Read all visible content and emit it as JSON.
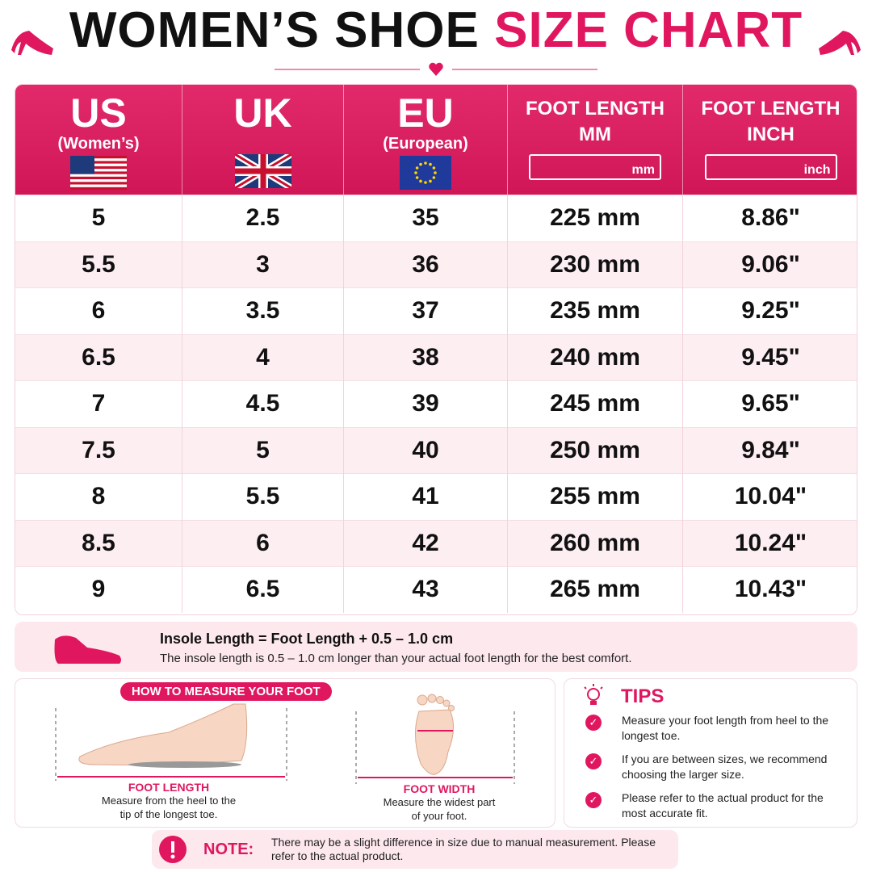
{
  "header": {
    "title_dark": "WOMEN’S SHOE",
    "title_pink": "SIZE CHART"
  },
  "table": {
    "columns": [
      {
        "title": "US",
        "subtitle": "(Women’s)"
      },
      {
        "title": "UK"
      },
      {
        "title": "EU",
        "subtitle": "(European)"
      },
      {
        "title": "FOOT LENGTH",
        "subtitle": "MM",
        "ruler_unit": "mm"
      },
      {
        "title": "FOOT LENGTH",
        "subtitle": "INCH",
        "ruler_unit": "inch"
      }
    ],
    "rows": [
      [
        "5",
        "2.5",
        "35",
        "225 mm",
        "8.86\""
      ],
      [
        "5.5",
        "3",
        "36",
        "230 mm",
        "9.06\""
      ],
      [
        "6",
        "3.5",
        "37",
        "235 mm",
        "9.25\""
      ],
      [
        "6.5",
        "4",
        "38",
        "240 mm",
        "9.45\""
      ],
      [
        "7",
        "4.5",
        "39",
        "245 mm",
        "9.65\""
      ],
      [
        "7.5",
        "5",
        "40",
        "250 mm",
        "9.84\""
      ],
      [
        "8",
        "5.5",
        "41",
        "255 mm",
        "10.04\""
      ],
      [
        "8.5",
        "6",
        "42",
        "260 mm",
        "10.24\""
      ],
      [
        "9",
        "6.5",
        "43",
        "265 mm",
        "10.43\""
      ]
    ]
  },
  "insole": {
    "formula": "Insole Length = Foot Length + 0.5 – 1.0 cm",
    "description": "The insole length is 0.5 – 1.0 cm longer than your actual foot length for the best comfort."
  },
  "measure": {
    "title": "HOW TO MEASURE YOUR FOOT",
    "length": {
      "label": "FOOT LENGTH",
      "description": "Measure from the heel to the tip of the longest toe."
    },
    "width": {
      "label": "FOOT WIDTH",
      "description": "Measure the widest part of your foot."
    }
  },
  "tips": {
    "title": "TIPS",
    "items": [
      "Measure your foot length from heel to the longest toe.",
      "If you are between sizes, we recommend choosing the larger size.",
      "Please refer to the actual product for the most accurate fit."
    ]
  },
  "note": {
    "label": "NOTE:",
    "text": "There may be a slight difference in size due to manual measurement. Please refer to the actual product."
  }
}
